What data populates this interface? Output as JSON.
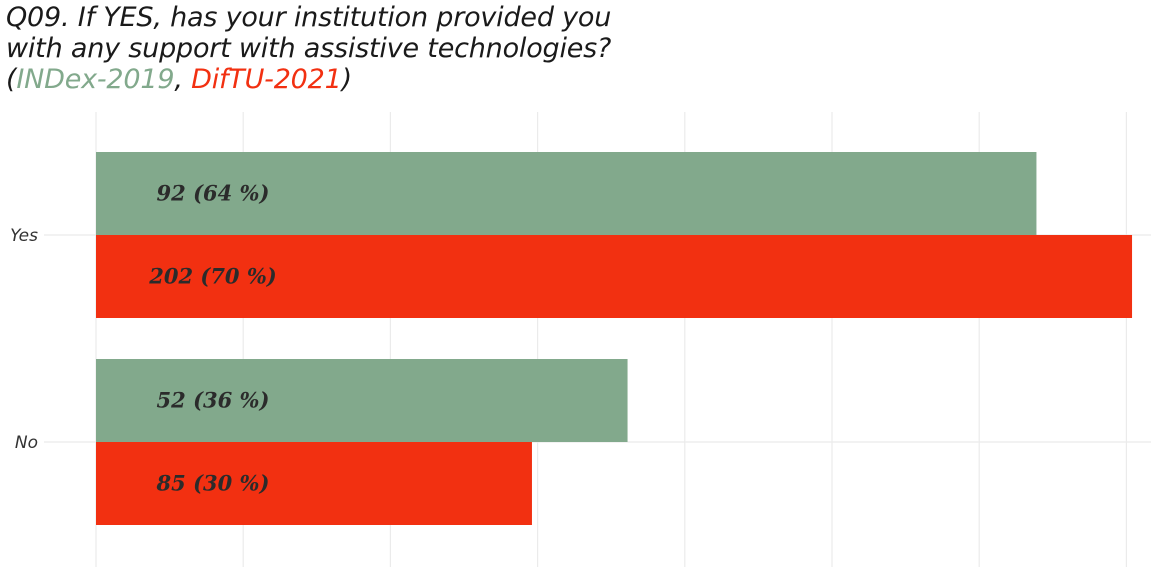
{
  "title": {
    "line1": "Q09. If YES, has your institution provided you",
    "line2": "with any support with assistive technologies?",
    "open_paren": "(",
    "series1_name": "INDex-2019",
    "separator": ", ",
    "series2_name": "DifTU-2021",
    "close_paren": ")"
  },
  "chart_data": {
    "type": "bar",
    "orientation": "horizontal",
    "categories": [
      "Yes",
      "No"
    ],
    "series": [
      {
        "name": "INDex-2019",
        "color": "#82a98c",
        "values": [
          92,
          52
        ],
        "labels": [
          "92  (64 %)",
          "52  (36 %)"
        ]
      },
      {
        "name": "DifTU-2021",
        "color": "#f23011",
        "values": [
          202,
          85
        ],
        "labels": [
          "202  (70 %)",
          "85  (30 %)"
        ]
      }
    ],
    "percent_range": [
      0,
      70
    ],
    "grid": true
  }
}
